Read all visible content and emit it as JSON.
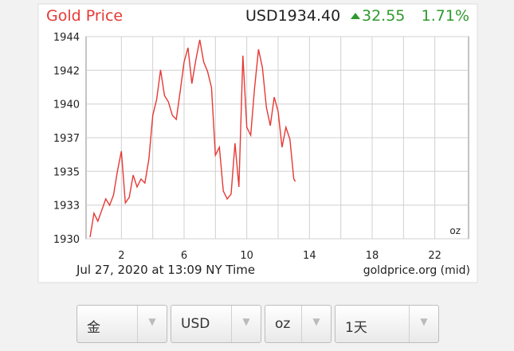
{
  "chart_data": {
    "type": "line",
    "title": "Gold Price",
    "price": "USD1934.40",
    "change": "32.55",
    "change_percent": "1.71%",
    "unit": "oz",
    "date_line": "Jul 27, 2020 at 13:09 NY Time",
    "source": "goldprice.org (mid)",
    "color": "#e53935",
    "grid": true,
    "xlim": [
      0,
      24
    ],
    "xticks": [
      2,
      6,
      10,
      14,
      18,
      22
    ],
    "x_minor_ticks": [
      4,
      8,
      12,
      16,
      20
    ],
    "ylim": [
      1930.4,
      1944.4
    ],
    "yticks": [
      {
        "value": 1930.4,
        "label": "1930"
      },
      {
        "value": 1932.73,
        "label": "1933"
      },
      {
        "value": 1935.07,
        "label": "1935"
      },
      {
        "value": 1937.4,
        "label": "1937"
      },
      {
        "value": 1939.73,
        "label": "1940"
      },
      {
        "value": 1942.07,
        "label": "1942"
      },
      {
        "value": 1944.4,
        "label": "1944"
      }
    ],
    "x": [
      0,
      0.25,
      0.5,
      0.75,
      1,
      1.25,
      1.5,
      1.75,
      2,
      2.25,
      2.5,
      2.75,
      3,
      3.25,
      3.5,
      3.75,
      4,
      4.25,
      4.5,
      4.75,
      5,
      5.25,
      5.5,
      5.75,
      6,
      6.25,
      6.5,
      6.75,
      7,
      7.25,
      7.5,
      7.75,
      8,
      8.25,
      8.5,
      8.75,
      9,
      9.25,
      9.5,
      9.75,
      10,
      10.25,
      10.5,
      10.75,
      11,
      11.25,
      11.5,
      11.75,
      12,
      12.25,
      12.5,
      12.75,
      13,
      13.1
    ],
    "values": [
      1930.51,
      1932.17,
      1931.62,
      1932.39,
      1933.16,
      1932.72,
      1933.44,
      1935.09,
      1936.47,
      1932.88,
      1933.27,
      1934.81,
      1933.99,
      1934.54,
      1934.26,
      1935.91,
      1938.95,
      1940.05,
      1942.09,
      1940.32,
      1939.88,
      1938.95,
      1938.67,
      1940.6,
      1942.64,
      1943.63,
      1941.15,
      1942.8,
      1944.18,
      1942.64,
      1941.98,
      1940.87,
      1936.19,
      1936.74,
      1933.71,
      1933.16,
      1933.5,
      1937.02,
      1933.99,
      1943.08,
      1938.12,
      1937.57,
      1940.87,
      1943.52,
      1942.25,
      1939.5,
      1938.23,
      1940.21,
      1939.22,
      1936.74,
      1938.12,
      1937.29,
      1934.54,
      1934.37
    ]
  },
  "controls": [
    "金",
    "USD",
    "oz",
    "1天"
  ]
}
